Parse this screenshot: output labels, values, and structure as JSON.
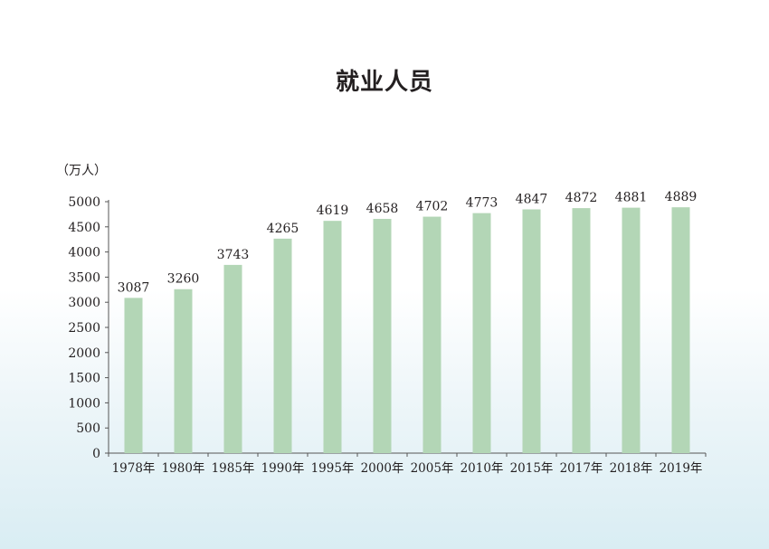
{
  "chart_data": {
    "type": "bar",
    "title": "就业人员",
    "ylabel": "（万人）",
    "categories": [
      "1978年",
      "1980年",
      "1985年",
      "1990年",
      "1995年",
      "2000年",
      "2005年",
      "2010年",
      "2015年",
      "2017年",
      "2018年",
      "2019年"
    ],
    "values": [
      3087,
      3260,
      3743,
      4265,
      4619,
      4658,
      4702,
      4773,
      4847,
      4872,
      4881,
      4889
    ],
    "ylim": [
      0,
      5000
    ],
    "yticks": [
      0,
      500,
      1000,
      1500,
      2000,
      2500,
      3000,
      3500,
      4000,
      4500,
      5000
    ],
    "grid": false,
    "bar_color": "#b3d6b6",
    "axis_color": "#555555",
    "text_color": "#231f20"
  }
}
